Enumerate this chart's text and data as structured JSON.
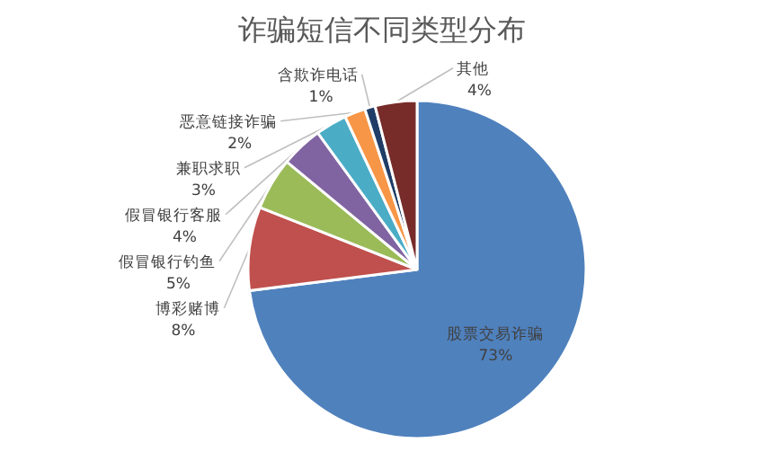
{
  "chart_data": {
    "type": "pie",
    "title": "诈骗短信不同类型分布",
    "categories": [
      "股票交易诈骗",
      "博彩赌博",
      "假冒银行钓鱼",
      "假冒银行客服",
      "兼职求职",
      "恶意链接诈骗",
      "含欺诈电话",
      "其他"
    ],
    "values": [
      73,
      8,
      5,
      4,
      3,
      2,
      1,
      4
    ],
    "value_labels": [
      "73%",
      "8%",
      "5%",
      "4%",
      "3%",
      "2%",
      "1%",
      "4%"
    ],
    "colors": [
      "#4f81bd",
      "#c0504d",
      "#9bbb59",
      "#8064a2",
      "#4bacc6",
      "#f79646",
      "#1f3d66",
      "#772c2a"
    ]
  }
}
